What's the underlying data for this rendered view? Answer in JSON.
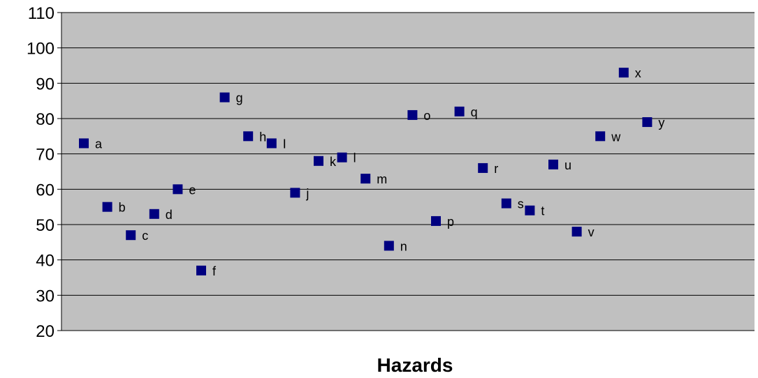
{
  "chart_data": {
    "type": "scatter",
    "title": "",
    "xlabel": "Hazards",
    "ylabel": "",
    "ylim": [
      20,
      110
    ],
    "yticks": [
      20,
      30,
      40,
      50,
      60,
      70,
      80,
      90,
      100,
      110
    ],
    "grid": true,
    "colors": {
      "plot_bg": "#c0c0c0",
      "marker": "#000080",
      "grid": "#000000"
    },
    "points": [
      {
        "label": "a",
        "x": 1,
        "y": 73
      },
      {
        "label": "b",
        "x": 2,
        "y": 55
      },
      {
        "label": "c",
        "x": 3,
        "y": 47
      },
      {
        "label": "d",
        "x": 4,
        "y": 53
      },
      {
        "label": "e",
        "x": 5,
        "y": 60
      },
      {
        "label": "f",
        "x": 6,
        "y": 37
      },
      {
        "label": "g",
        "x": 7,
        "y": 86
      },
      {
        "label": "h",
        "x": 8,
        "y": 75
      },
      {
        "label": "I",
        "x": 9,
        "y": 73
      },
      {
        "label": "j",
        "x": 10,
        "y": 59
      },
      {
        "label": "k",
        "x": 11,
        "y": 68
      },
      {
        "label": "l",
        "x": 12,
        "y": 69
      },
      {
        "label": "m",
        "x": 13,
        "y": 63
      },
      {
        "label": "n",
        "x": 14,
        "y": 44
      },
      {
        "label": "o",
        "x": 15,
        "y": 81
      },
      {
        "label": "p",
        "x": 16,
        "y": 51
      },
      {
        "label": "q",
        "x": 17,
        "y": 82
      },
      {
        "label": "r",
        "x": 18,
        "y": 66
      },
      {
        "label": "s",
        "x": 19,
        "y": 56
      },
      {
        "label": "t",
        "x": 20,
        "y": 54
      },
      {
        "label": "u",
        "x": 21,
        "y": 67
      },
      {
        "label": "v",
        "x": 22,
        "y": 48
      },
      {
        "label": "w",
        "x": 23,
        "y": 75
      },
      {
        "label": "x",
        "x": 24,
        "y": 93
      },
      {
        "label": "y",
        "x": 25,
        "y": 79
      }
    ]
  }
}
